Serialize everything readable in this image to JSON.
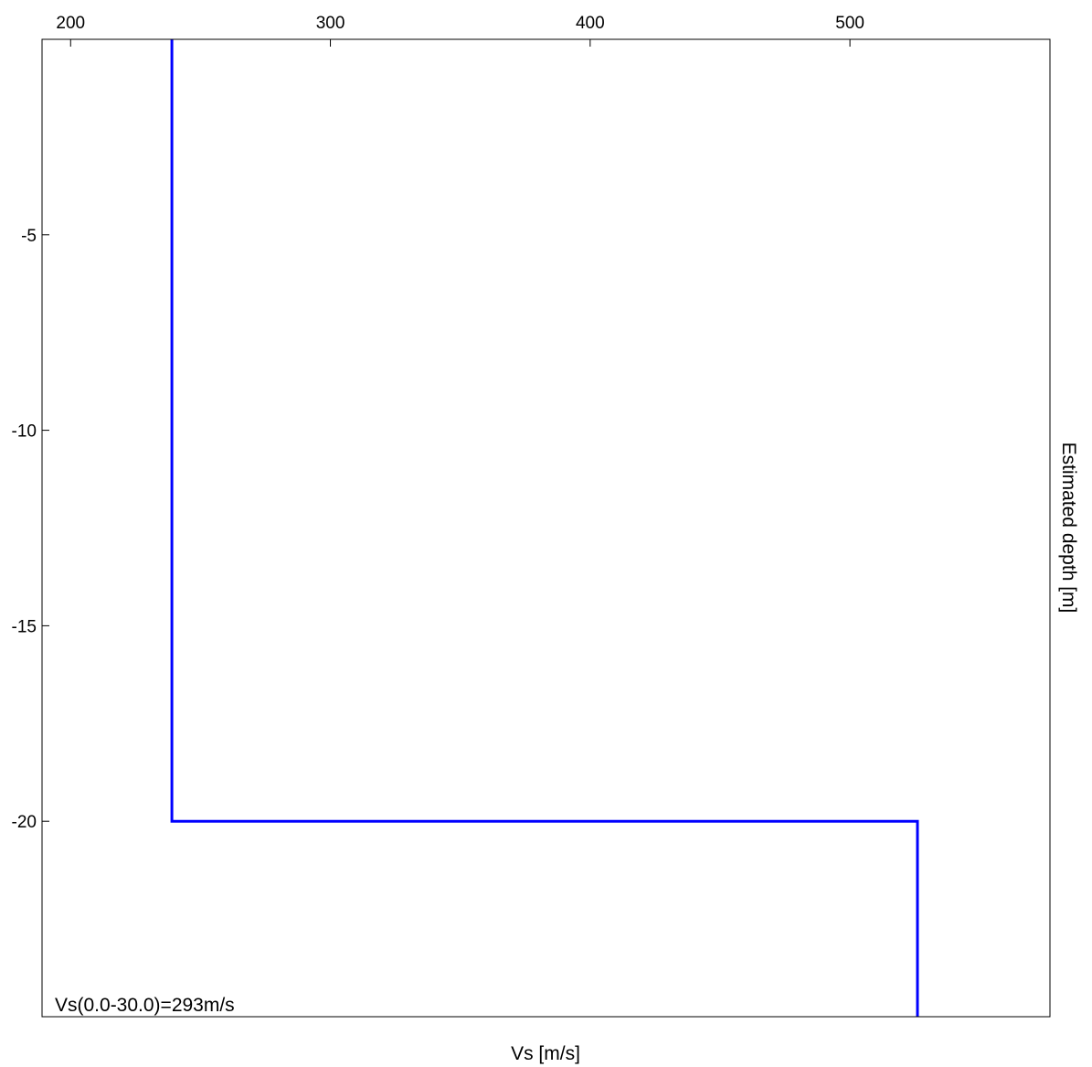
{
  "chart_data": {
    "type": "line",
    "title": "",
    "xlabel": "Vs [m/s]",
    "ylabel": "Estimated depth [m]",
    "x_axis_position": "top",
    "y_axis_label_position": "right",
    "xlim": [
      189,
      577
    ],
    "ylim": [
      -25,
      0
    ],
    "xticks": [
      200,
      300,
      400,
      500
    ],
    "yticks": [
      -5,
      -10,
      -15,
      -20
    ],
    "grid": false,
    "legend": "none",
    "series": [
      {
        "color": "#0000ff",
        "points": [
          {
            "x": 239,
            "y": 0
          },
          {
            "x": 239,
            "y": -20
          },
          {
            "x": 526,
            "y": -20
          },
          {
            "x": 526,
            "y": -25
          }
        ]
      }
    ],
    "annotation": "Vs(0.0-30.0)=293m/s"
  }
}
